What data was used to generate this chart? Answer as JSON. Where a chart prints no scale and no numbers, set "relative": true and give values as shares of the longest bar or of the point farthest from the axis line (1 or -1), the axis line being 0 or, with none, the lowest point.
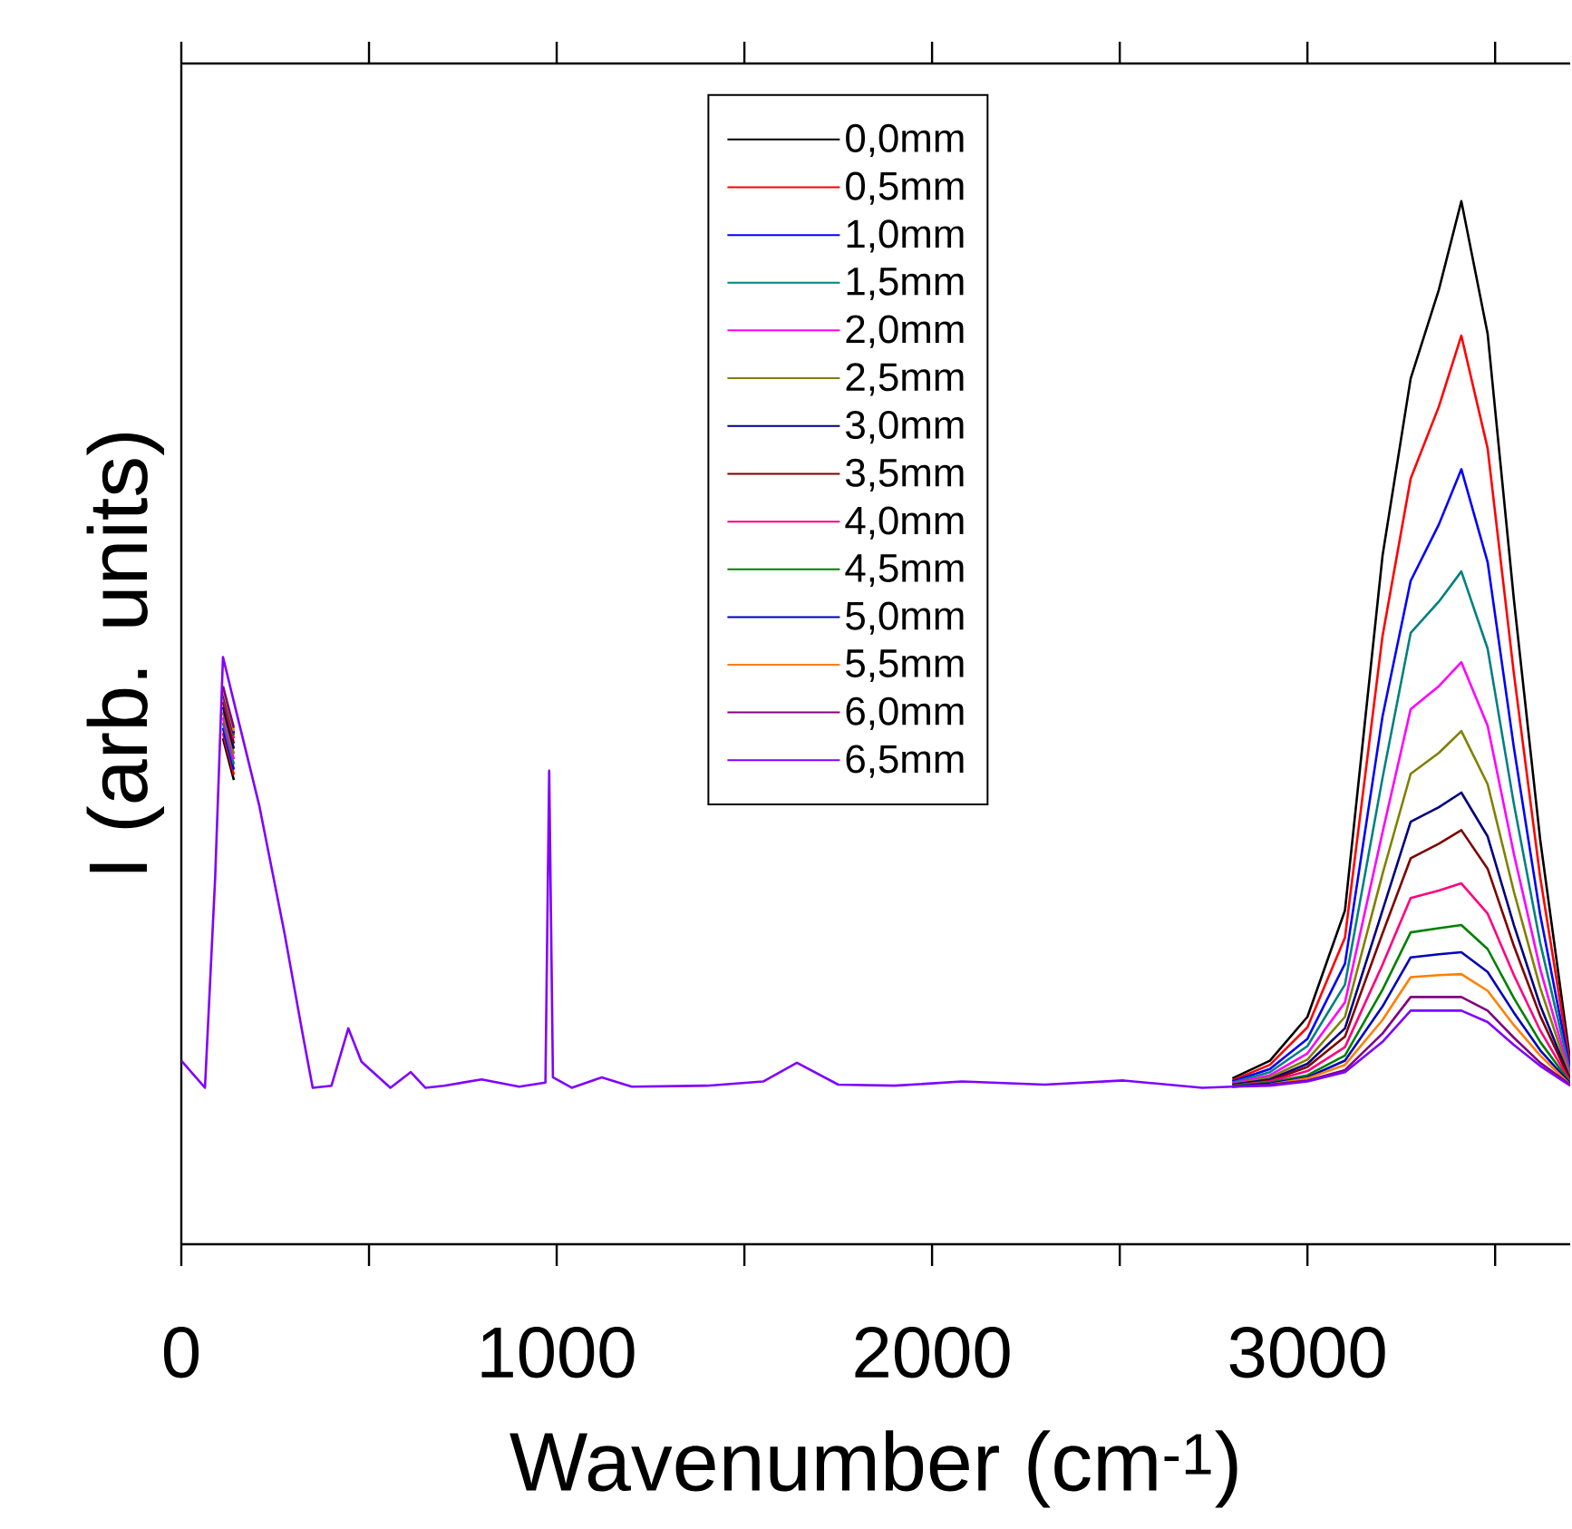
{
  "chart_data": {
    "type": "line",
    "relative": true,
    "xlabel": "Wavenumber (cm$^{-1}$)",
    "ylabel": "I (arb. units)",
    "legend": "top",
    "xlim": [
      0,
      3700
    ],
    "xticks": [
      0,
      {
        "value": 500,
        "label": null
      },
      1000,
      {
        "value": 1500,
        "label": null
      },
      2000,
      {
        "value": 2500,
        "label": null
      },
      3000,
      {
        "value": 3500,
        "label": null
      }
    ],
    "x": [
      0,
      63,
      90,
      111,
      140,
      208,
      275,
      324,
      350,
      400,
      445,
      480,
      557,
      611,
      650,
      700,
      800,
      900,
      970,
      980,
      990,
      1040,
      1120,
      1200,
      1400,
      1550,
      1640,
      1750,
      1900,
      2080,
      2300,
      2510,
      2720,
      2800,
      2900,
      3000,
      3100,
      3200,
      3275,
      3350,
      3410,
      3480,
      3550,
      3620,
      3700
    ],
    "series": [
      {
        "name": "0,0mm",
        "color": "#000000",
        "values": [
          null,
          null,
          null,
          0.485,
          0.445,
          null,
          null,
          null,
          null,
          null,
          null,
          null,
          null,
          null,
          null,
          null,
          null,
          null,
          null,
          null,
          null,
          null,
          null,
          null,
          null,
          null,
          null,
          null,
          null,
          null,
          null,
          null,
          null,
          0.159,
          0.176,
          0.218,
          0.32,
          0.66,
          0.83,
          0.915,
          1.0,
          0.873,
          0.618,
          0.388,
          0.176
        ]
      },
      {
        "name": "0,5mm",
        "color": "#ff0000",
        "values": [
          null,
          null,
          null,
          0.49,
          0.45,
          null,
          null,
          null,
          null,
          null,
          null,
          null,
          null,
          null,
          null,
          null,
          null,
          null,
          null,
          null,
          null,
          null,
          null,
          null,
          null,
          null,
          null,
          null,
          null,
          null,
          null,
          null,
          null,
          0.157,
          0.172,
          0.208,
          0.294,
          0.583,
          0.734,
          0.803,
          0.871,
          0.763,
          0.547,
          0.352,
          0.172
        ]
      },
      {
        "name": "1,0mm",
        "color": "#0000ff",
        "values": [
          null,
          null,
          null,
          0.495,
          0.455,
          null,
          null,
          null,
          null,
          null,
          null,
          null,
          null,
          null,
          null,
          null,
          null,
          null,
          null,
          null,
          null,
          null,
          null,
          null,
          null,
          null,
          null,
          null,
          null,
          null,
          null,
          null,
          null,
          0.156,
          0.168,
          0.197,
          0.269,
          0.506,
          0.636,
          0.69,
          0.743,
          0.654,
          0.476,
          0.316,
          0.168
        ]
      },
      {
        "name": "1,5mm",
        "color": "#008080",
        "values": [
          null,
          null,
          null,
          0.5,
          0.46,
          null,
          null,
          null,
          null,
          null,
          null,
          null,
          null,
          null,
          null,
          null,
          null,
          null,
          null,
          null,
          null,
          null,
          null,
          null,
          null,
          null,
          null,
          null,
          null,
          null,
          null,
          null,
          null,
          0.155,
          0.165,
          0.19,
          0.249,
          0.447,
          0.586,
          0.616,
          0.645,
          0.571,
          0.422,
          0.289,
          0.165
        ]
      },
      {
        "name": "2,0mm",
        "color": "#ff00ff",
        "values": [
          null,
          null,
          null,
          0.505,
          0.465,
          null,
          null,
          null,
          null,
          null,
          null,
          null,
          null,
          null,
          null,
          null,
          null,
          null,
          null,
          null,
          null,
          null,
          null,
          null,
          null,
          null,
          null,
          null,
          null,
          null,
          null,
          null,
          null,
          0.154,
          0.162,
          0.183,
          0.232,
          0.395,
          0.513,
          0.535,
          0.558,
          0.497,
          0.374,
          0.264,
          0.162
        ]
      },
      {
        "name": "2,5mm",
        "color": "#808000",
        "values": [
          null,
          null,
          null,
          0.51,
          0.47,
          null,
          null,
          null,
          null,
          null,
          null,
          null,
          null,
          null,
          null,
          null,
          null,
          null,
          null,
          null,
          null,
          null,
          null,
          null,
          null,
          null,
          null,
          null,
          null,
          null,
          null,
          null,
          null,
          0.153,
          0.16,
          0.177,
          0.218,
          0.355,
          0.451,
          0.471,
          0.492,
          0.441,
          0.338,
          0.246,
          0.16
        ]
      },
      {
        "name": "3,0mm",
        "color": "#000080",
        "values": [
          null,
          null,
          null,
          0.515,
          0.475,
          null,
          null,
          null,
          null,
          null,
          null,
          null,
          null,
          null,
          null,
          null,
          null,
          null,
          null,
          null,
          null,
          null,
          null,
          null,
          null,
          null,
          null,
          null,
          null,
          null,
          null,
          null,
          null,
          0.153,
          0.158,
          0.173,
          0.207,
          0.32,
          0.405,
          0.419,
          0.433,
          0.391,
          0.306,
          0.229,
          0.158
        ]
      },
      {
        "name": "3,5mm",
        "color": "#800000",
        "values": [
          null,
          null,
          null,
          0.52,
          0.48,
          null,
          null,
          null,
          null,
          null,
          null,
          null,
          null,
          null,
          null,
          null,
          null,
          null,
          null,
          null,
          null,
          null,
          null,
          null,
          null,
          null,
          null,
          null,
          null,
          null,
          null,
          null,
          null,
          0.152,
          0.157,
          0.17,
          0.199,
          0.298,
          0.37,
          0.384,
          0.397,
          0.36,
          0.286,
          0.219,
          0.157
        ]
      },
      {
        "name": "4,0mm",
        "color": "#ff0080",
        "values": [
          null,
          null,
          null,
          0.525,
          0.485,
          null,
          null,
          null,
          null,
          null,
          null,
          null,
          null,
          null,
          null,
          null,
          null,
          null,
          null,
          null,
          null,
          null,
          null,
          null,
          null,
          null,
          null,
          null,
          null,
          null,
          null,
          null,
          null,
          0.152,
          0.156,
          0.166,
          0.189,
          0.268,
          0.332,
          0.339,
          0.346,
          0.317,
          0.258,
          0.205,
          0.156
        ]
      },
      {
        "name": "4,5mm",
        "color": "#008000",
        "values": [
          null,
          null,
          null,
          0.528,
          0.488,
          null,
          null,
          null,
          null,
          null,
          null,
          null,
          null,
          null,
          null,
          null,
          null,
          null,
          null,
          null,
          null,
          null,
          null,
          null,
          null,
          null,
          null,
          null,
          null,
          null,
          null,
          null,
          null,
          0.152,
          0.155,
          0.162,
          0.181,
          0.244,
          0.299,
          0.303,
          0.306,
          0.283,
          0.236,
          0.194,
          0.155
        ]
      },
      {
        "name": "5,0mm",
        "color": "#0000c0",
        "values": [
          null,
          null,
          null,
          0.53,
          0.49,
          null,
          null,
          null,
          null,
          null,
          null,
          null,
          null,
          null,
          null,
          null,
          null,
          null,
          null,
          null,
          null,
          null,
          null,
          null,
          null,
          null,
          null,
          null,
          null,
          null,
          null,
          null,
          null,
          0.151,
          0.154,
          0.16,
          0.176,
          0.228,
          0.275,
          0.278,
          0.28,
          0.261,
          0.222,
          0.186,
          0.154
        ]
      },
      {
        "name": "5,5mm",
        "color": "#ff8000",
        "values": [
          null,
          null,
          null,
          0.532,
          0.492,
          null,
          null,
          null,
          null,
          null,
          null,
          null,
          null,
          null,
          null,
          null,
          null,
          null,
          null,
          null,
          null,
          null,
          null,
          null,
          null,
          null,
          null,
          null,
          null,
          null,
          null,
          null,
          null,
          null,
          0.153,
          0.159,
          0.172,
          0.215,
          0.256,
          0.258,
          0.259,
          0.243,
          0.21,
          0.181,
          0.153
        ]
      },
      {
        "name": "6,0mm",
        "color": "#800080",
        "values": [
          null,
          null,
          null,
          0.535,
          0.495,
          null,
          null,
          null,
          null,
          null,
          null,
          null,
          null,
          null,
          null,
          null,
          null,
          null,
          null,
          null,
          null,
          null,
          null,
          null,
          null,
          null,
          null,
          null,
          null,
          null,
          null,
          null,
          null,
          0.151,
          0.153,
          0.157,
          0.167,
          0.202,
          0.237,
          0.237,
          0.237,
          0.224,
          0.198,
          0.174,
          0.153
        ]
      },
      {
        "name": "6,5mm",
        "color": "#8000ff",
        "values": [
          0.176,
          0.15,
          0.35,
          0.563,
          0.52,
          0.42,
          0.298,
          0.2,
          0.15,
          0.152,
          0.207,
          0.175,
          0.15,
          0.165,
          0.15,
          0.152,
          0.158,
          0.151,
          0.155,
          0.454,
          0.16,
          0.15,
          0.16,
          0.151,
          0.152,
          0.156,
          0.174,
          0.153,
          0.152,
          0.156,
          0.153,
          0.157,
          0.15,
          0.151,
          0.152,
          0.156,
          0.165,
          0.194,
          0.224,
          0.224,
          0.224,
          0.213,
          0.191,
          0.171,
          0.152
        ]
      }
    ]
  }
}
